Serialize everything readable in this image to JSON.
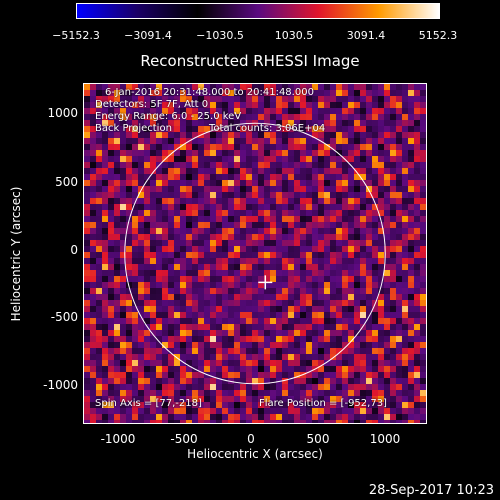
{
  "colorbar": {
    "min": -5152.3,
    "max": 5152.3,
    "labels": [
      "−5152.3",
      "−3091.4",
      "−1030.5",
      "1030.5",
      "3091.4",
      "5152.3"
    ],
    "colors": [
      "#0000ff",
      "#1a0066",
      "#000000",
      "#5a0a80",
      "#e0152c",
      "#ff9a00",
      "#ffffff"
    ]
  },
  "title": "Reconstructed RHESSI Image",
  "annotations": {
    "time_range": "6-Jan-2016 20:31:48.000 to 20:41:48.000",
    "detectors": "Detectors: 5F 7F, Att 0",
    "energy": "Energy Range: 6.0 - 25.0 keV",
    "method": "Back Projection",
    "counts": "Total counts: 3.06E+04",
    "spin_axis": "Spin Axis = [77,-218]",
    "flare_position": "Flare Position = [-952,73]"
  },
  "axes": {
    "xlabel": "Heliocentric X (arcsec)",
    "ylabel": "Heliocentric Y (arcsec)",
    "xlim": [
      -1280,
      1280
    ],
    "ylim": [
      -1280,
      1280
    ],
    "xticks": [
      "-1000",
      "-500",
      "0",
      "500",
      "1000"
    ],
    "yticks": [
      "1000",
      "500",
      "0",
      "-500",
      "-1000"
    ]
  },
  "solar_disk": {
    "center": [
      0,
      0
    ],
    "radius_arcsec": 975,
    "color": "#ffffff"
  },
  "spin_axis_marker": [
    77,
    -218
  ],
  "footer": "28-Sep-2017 10:23"
}
